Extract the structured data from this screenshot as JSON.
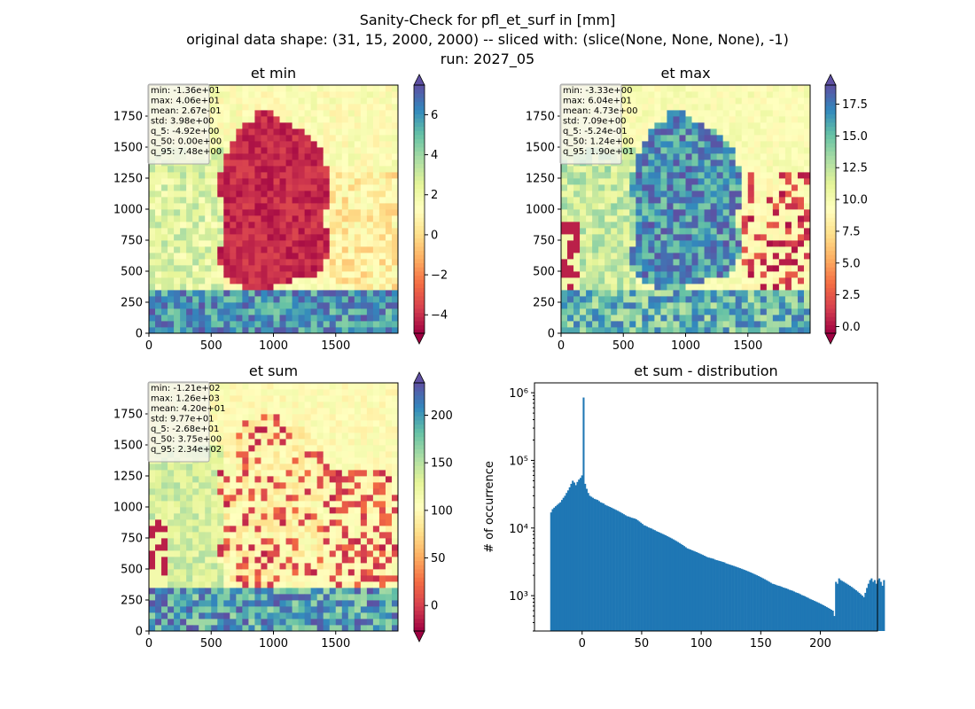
{
  "figure": {
    "title_lines": [
      "Sanity-Check for pfl_et_surf in [mm]",
      "original data shape: (31, 15, 2000, 2000) -- sliced with: (slice(None, None, None), -1)",
      "run: 2027_05"
    ]
  },
  "panels": [
    {
      "title": "et min",
      "stats": [
        "min: -1.36e+01",
        "max: 4.06e+01",
        "mean: 2.67e-01",
        "std: 3.98e+00",
        "q_5: -4.92e+00",
        "q_50: 0.00e+00",
        "q_95: 7.48e+00"
      ],
      "x_ticks": [
        "0",
        "500",
        "1000",
        "1500"
      ],
      "y_ticks": [
        "0",
        "250",
        "500",
        "750",
        "1000",
        "1250",
        "1500",
        "1750"
      ],
      "colorbar_ticks": [
        "6",
        "4",
        "2",
        "0",
        "−2",
        "−4"
      ],
      "colorbar_values": [
        6,
        4,
        2,
        0,
        -2,
        -4
      ],
      "colorbar_range": [
        -4.92,
        7.48
      ]
    },
    {
      "title": "et max",
      "stats": [
        "min: -3.33e+00",
        "max: 6.04e+01",
        "mean: 4.73e+00",
        "std: 7.09e+00",
        "q_5: -5.24e-01",
        "q_50: 1.24e+00",
        "q_95: 1.90e+01"
      ],
      "x_ticks": [
        "0",
        "500",
        "1000",
        "1500"
      ],
      "y_ticks": [
        "0",
        "250",
        "500",
        "750",
        "1000",
        "1250",
        "1500",
        "1750"
      ],
      "colorbar_ticks": [
        "17.5",
        "15.0",
        "12.5",
        "10.0",
        "7.5",
        "5.0",
        "2.5",
        "0.0"
      ],
      "colorbar_values": [
        17.5,
        15.0,
        12.5,
        10.0,
        7.5,
        5.0,
        2.5,
        0.0
      ],
      "colorbar_range": [
        -0.524,
        19.0
      ]
    },
    {
      "title": "et sum",
      "stats": [
        "min: -1.21e+02",
        "max: 1.26e+03",
        "mean: 4.20e+01",
        "std: 9.77e+01",
        "q_5: -2.68e+01",
        "q_50: 3.75e+00",
        "q_95: 2.34e+02"
      ],
      "x_ticks": [
        "0",
        "500",
        "1000",
        "1500"
      ],
      "y_ticks": [
        "0",
        "250",
        "500",
        "750",
        "1000",
        "1250",
        "1500",
        "1750"
      ],
      "colorbar_ticks": [
        "200",
        "150",
        "100",
        "50",
        "0"
      ],
      "colorbar_values": [
        200,
        150,
        100,
        50,
        0
      ],
      "colorbar_range": [
        -26.8,
        234
      ]
    }
  ],
  "chart_data": {
    "type": "bar",
    "title": "et sum - distribution",
    "ylabel": "# of occurrence",
    "xlabel": "",
    "yscale": "log",
    "ylim": [
      300,
      1400000
    ],
    "xlim": [
      -40,
      248
    ],
    "x_ticks": [
      0,
      50,
      100,
      150,
      200
    ],
    "x_tick_labels": [
      "0",
      "50",
      "100",
      "150",
      "200"
    ],
    "y_ticks": [
      1000,
      10000,
      100000,
      1000000
    ],
    "y_tick_labels": [
      "10³",
      "10⁴",
      "10⁵",
      "10⁶"
    ],
    "bin_start": -26.8,
    "bin_width": 1.3,
    "series": [
      {
        "color": "#1f77b4",
        "values": [
          17000,
          19000,
          20000,
          21000,
          22000,
          23000,
          24000,
          26000,
          28000,
          30000,
          33000,
          36000,
          40000,
          45000,
          50000,
          47000,
          43000,
          48000,
          52000,
          55000,
          60000,
          850000,
          45000,
          38000,
          33000,
          30000,
          29000,
          28000,
          27000,
          26500,
          26000,
          25000,
          24000,
          23500,
          23000,
          22000,
          21500,
          21000,
          20500,
          20000,
          19500,
          19000,
          18500,
          18000,
          17500,
          17000,
          16500,
          16000,
          15500,
          15000,
          14800,
          14500,
          14200,
          14000,
          13800,
          13500,
          13000,
          12500,
          12000,
          11500,
          11000,
          10800,
          10500,
          10200,
          10000,
          9800,
          9500,
          9300,
          9000,
          8800,
          8600,
          8400,
          8200,
          8000,
          7800,
          7600,
          7400,
          7200,
          7000,
          6800,
          6600,
          6400,
          6200,
          6000,
          5800,
          5600,
          5400,
          5200,
          5000,
          4900,
          4800,
          4700,
          4600,
          4500,
          4400,
          4300,
          4200,
          4100,
          4000,
          3900,
          3800,
          3700,
          3650,
          3600,
          3550,
          3500,
          3400,
          3350,
          3300,
          3250,
          3200,
          3150,
          3100,
          3000,
          2950,
          2900,
          2850,
          2800,
          2750,
          2700,
          2650,
          2600,
          2550,
          2500,
          2450,
          2400,
          2350,
          2300,
          2250,
          2200,
          2150,
          2100,
          2050,
          2000,
          1950,
          1900,
          1850,
          1800,
          1750,
          1700,
          1650,
          1600,
          1550,
          1500,
          1480,
          1450,
          1420,
          1400,
          1380,
          1350,
          1320,
          1300,
          1280,
          1250,
          1220,
          1200,
          1180,
          1150,
          1120,
          1100,
          1080,
          1050,
          1020,
          1000,
          980,
          950,
          930,
          900,
          880,
          860,
          840,
          820,
          800,
          780,
          760,
          740,
          720,
          700,
          680,
          660,
          640,
          620,
          600,
          500,
          1600,
          1500,
          1800,
          1700,
          1650,
          1600,
          1550,
          1500,
          1450,
          1400,
          1350,
          1300,
          1250,
          1200,
          1150,
          1100,
          1050,
          1000,
          950,
          1100,
          1300,
          1500,
          1700,
          1800,
          1600,
          1700,
          1500,
          1700,
          1800,
          1600,
          1400,
          1700
        ]
      }
    ]
  }
}
